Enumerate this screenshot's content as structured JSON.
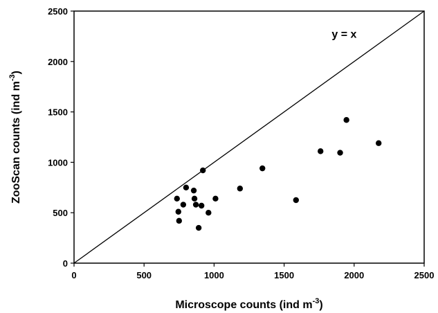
{
  "chart_data": {
    "type": "scatter",
    "title": "",
    "xlabel": {
      "text": "Microscope counts (ind m",
      "sup": "-3",
      "close": ")"
    },
    "ylabel": {
      "text": "ZooScan counts (ind m",
      "sup": "-3",
      "close": ")"
    },
    "xlim": [
      0,
      2500
    ],
    "ylim": [
      0,
      2500
    ],
    "xticks": [
      0,
      500,
      1000,
      1500,
      2000,
      2500
    ],
    "yticks": [
      0,
      500,
      1000,
      1500,
      2000,
      2500
    ],
    "grid": false,
    "legend": "none",
    "reference_line": {
      "label": "y = x",
      "slope": 1,
      "intercept": 0
    },
    "series": [
      {
        "points": [
          [
            735,
            640
          ],
          [
            745,
            510
          ],
          [
            750,
            420
          ],
          [
            780,
            580
          ],
          [
            800,
            750
          ],
          [
            855,
            720
          ],
          [
            860,
            640
          ],
          [
            870,
            580
          ],
          [
            890,
            350
          ],
          [
            910,
            570
          ],
          [
            920,
            920
          ],
          [
            960,
            500
          ],
          [
            1010,
            640
          ],
          [
            1185,
            740
          ],
          [
            1345,
            940
          ],
          [
            1585,
            625
          ],
          [
            1760,
            1110
          ],
          [
            1900,
            1095
          ],
          [
            1945,
            1420
          ],
          [
            2175,
            1190
          ]
        ]
      }
    ]
  },
  "colors": {
    "marker": "#000000",
    "axis": "#000000",
    "background": "#ffffff"
  }
}
